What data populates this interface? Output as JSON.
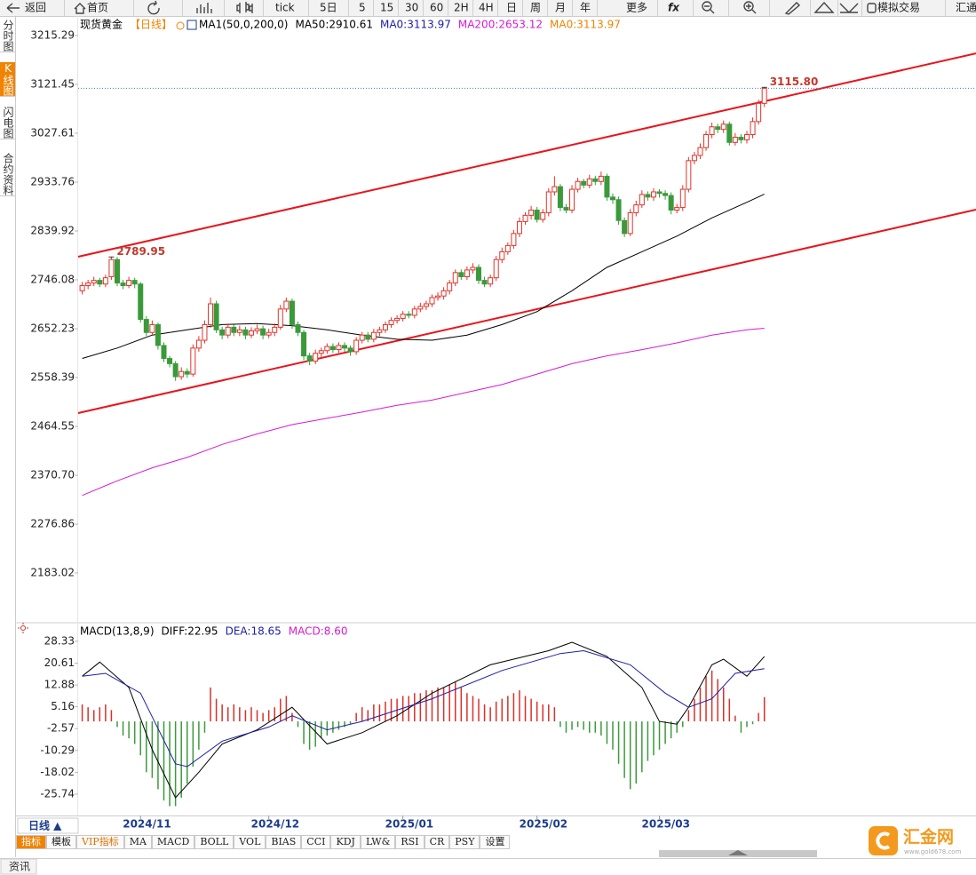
{
  "toolbar": {
    "items": [
      "返回",
      "首页",
      "tick",
      "5日",
      "5",
      "15",
      "30",
      "60",
      "2H",
      "4H",
      "日",
      "周",
      "月",
      "年",
      "更多",
      "fx",
      "模拟交易",
      "汇通"
    ]
  },
  "sidebar": {
    "items": [
      "分时图",
      "K线图",
      "闪电图",
      "合约资料"
    ],
    "active": 1
  },
  "chart_data": [
    {
      "type": "candlestick",
      "title": "现货黄金",
      "period": "【日线】",
      "indicator": "MA1(50,0,200,0)",
      "up_color": "#e0332a",
      "down_color": "#3a9a3a",
      "xlim": [
        -0.7,
        153.3
      ],
      "ylim": [
        2089.2,
        3252.8
      ],
      "yticks": [
        3215.29,
        3121.45,
        3027.61,
        2933.76,
        2839.92,
        2746.08,
        2652.23,
        2558.39,
        2464.55,
        {
          "value": 2370.7,
          "label": "2370.70"
        },
        2276.86,
        2183.02
      ],
      "xticks": [
        {
          "value": 10,
          "label": "2024/11"
        },
        {
          "value": 32,
          "label": "2024/12"
        },
        {
          "value": 55,
          "label": "2025/01"
        },
        {
          "value": 78,
          "label": "2025/02"
        },
        {
          "value": 99,
          "label": "2025/03"
        }
      ],
      "ohlc": [
        [
          2725,
          2742,
          2718,
          2735
        ],
        [
          2735,
          2746,
          2728,
          2740
        ],
        [
          2740,
          2752,
          2734,
          2745
        ],
        [
          2745,
          2750,
          2732,
          2738
        ],
        [
          2738,
          2756,
          2732,
          2750
        ],
        [
          2752,
          2789.95,
          2746,
          2785
        ],
        [
          2785,
          2790,
          2734,
          2740
        ],
        [
          2740,
          2746,
          2728,
          2735
        ],
        [
          2735,
          2752,
          2730,
          2745
        ],
        [
          2745,
          2750,
          2730,
          2738
        ],
        [
          2738,
          2742,
          2664,
          2670
        ],
        [
          2670,
          2676,
          2638,
          2645
        ],
        [
          2645,
          2668,
          2640,
          2660
        ],
        [
          2660,
          2664,
          2612,
          2620
        ],
        [
          2620,
          2626,
          2588,
          2595
        ],
        [
          2595,
          2600,
          2578,
          2585
        ],
        [
          2585,
          2590,
          2552,
          2560
        ],
        [
          2560,
          2578,
          2554,
          2570
        ],
        [
          2570,
          2576,
          2558,
          2565
        ],
        [
          2565,
          2622,
          2560,
          2615
        ],
        [
          2615,
          2638,
          2608,
          2630
        ],
        [
          2630,
          2668,
          2624,
          2660
        ],
        [
          2660,
          2712,
          2654,
          2700
        ],
        [
          2700,
          2706,
          2644,
          2650
        ],
        [
          2650,
          2656,
          2632,
          2640
        ],
        [
          2640,
          2662,
          2634,
          2655
        ],
        [
          2655,
          2660,
          2638,
          2645
        ],
        [
          2645,
          2658,
          2638,
          2650
        ],
        [
          2650,
          2656,
          2632,
          2640
        ],
        [
          2640,
          2655,
          2634,
          2648
        ],
        [
          2648,
          2660,
          2642,
          2652
        ],
        [
          2652,
          2658,
          2632,
          2640
        ],
        [
          2640,
          2652,
          2634,
          2645
        ],
        [
          2645,
          2662,
          2638,
          2655
        ],
        [
          2655,
          2698,
          2650,
          2690
        ],
        [
          2690,
          2712,
          2684,
          2705
        ],
        [
          2705,
          2710,
          2652,
          2660
        ],
        [
          2660,
          2666,
          2638,
          2645
        ],
        [
          2645,
          2650,
          2592,
          2600
        ],
        [
          2600,
          2606,
          2582,
          2590
        ],
        [
          2590,
          2612,
          2584,
          2605
        ],
        [
          2605,
          2616,
          2598,
          2610
        ],
        [
          2610,
          2624,
          2604,
          2618
        ],
        [
          2618,
          2624,
          2606,
          2612
        ],
        [
          2612,
          2626,
          2606,
          2620
        ],
        [
          2620,
          2626,
          2608,
          2615
        ],
        [
          2615,
          2620,
          2600,
          2608
        ],
        [
          2608,
          2636,
          2602,
          2630
        ],
        [
          2630,
          2646,
          2624,
          2640
        ],
        [
          2640,
          2646,
          2626,
          2632
        ],
        [
          2632,
          2652,
          2626,
          2645
        ],
        [
          2645,
          2656,
          2638,
          2650
        ],
        [
          2650,
          2666,
          2644,
          2660
        ],
        [
          2660,
          2674,
          2654,
          2668
        ],
        [
          2668,
          2678,
          2662,
          2672
        ],
        [
          2672,
          2686,
          2666,
          2680
        ],
        [
          2680,
          2686,
          2672,
          2678
        ],
        [
          2678,
          2696,
          2672,
          2690
        ],
        [
          2690,
          2702,
          2684,
          2695
        ],
        [
          2695,
          2706,
          2688,
          2700
        ],
        [
          2700,
          2718,
          2694,
          2712
        ],
        [
          2712,
          2722,
          2706,
          2715
        ],
        [
          2715,
          2732,
          2708,
          2725
        ],
        [
          2725,
          2746,
          2718,
          2740
        ],
        [
          2740,
          2766,
          2734,
          2760
        ],
        [
          2760,
          2766,
          2746,
          2752
        ],
        [
          2752,
          2772,
          2746,
          2765
        ],
        [
          2765,
          2778,
          2758,
          2770
        ],
        [
          2770,
          2776,
          2738,
          2745
        ],
        [
          2745,
          2752,
          2732,
          2738
        ],
        [
          2738,
          2756,
          2732,
          2750
        ],
        [
          2750,
          2792,
          2744,
          2785
        ],
        [
          2785,
          2808,
          2778,
          2800
        ],
        [
          2800,
          2818,
          2794,
          2812
        ],
        [
          2812,
          2842,
          2806,
          2835
        ],
        [
          2835,
          2866,
          2828,
          2858
        ],
        [
          2858,
          2876,
          2852,
          2870
        ],
        [
          2870,
          2888,
          2862,
          2880
        ],
        [
          2880,
          2886,
          2856,
          2862
        ],
        [
          2862,
          2882,
          2856,
          2875
        ],
        [
          2875,
          2922,
          2868,
          2915
        ],
        [
          2915,
          2945,
          2908,
          2925
        ],
        [
          2925,
          2930,
          2878,
          2885
        ],
        [
          2885,
          2892,
          2874,
          2880
        ],
        [
          2880,
          2928,
          2874,
          2920
        ],
        [
          2920,
          2942,
          2914,
          2935
        ],
        [
          2935,
          2940,
          2922,
          2928
        ],
        [
          2928,
          2948,
          2922,
          2940
        ],
        [
          2940,
          2946,
          2928,
          2935
        ],
        [
          2935,
          2954,
          2928,
          2945
        ],
        [
          2945,
          2950,
          2898,
          2905
        ],
        [
          2905,
          2912,
          2892,
          2900
        ],
        [
          2900,
          2906,
          2852,
          2860
        ],
        [
          2860,
          2866,
          2828,
          2835
        ],
        [
          2835,
          2882,
          2830,
          2875
        ],
        [
          2875,
          2898,
          2868,
          2890
        ],
        [
          2890,
          2918,
          2884,
          2910
        ],
        [
          2910,
          2916,
          2898,
          2905
        ],
        [
          2905,
          2922,
          2898,
          2915
        ],
        [
          2915,
          2920,
          2904,
          2912
        ],
        [
          2912,
          2918,
          2900,
          2908
        ],
        [
          2908,
          2914,
          2872,
          2880
        ],
        [
          2880,
          2892,
          2874,
          2885
        ],
        [
          2885,
          2928,
          2878,
          2920
        ],
        [
          2920,
          2982,
          2914,
          2975
        ],
        [
          2975,
          2992,
          2968,
          2985
        ],
        [
          2985,
          3008,
          2978,
          3000
        ],
        [
          3000,
          3032,
          2994,
          3025
        ],
        [
          3025,
          3048,
          3018,
          3040
        ],
        [
          3040,
          3046,
          3028,
          3035
        ],
        [
          3035,
          3052,
          3028,
          3045
        ],
        [
          3045,
          3050,
          3004,
          3010
        ],
        [
          3010,
          3028,
          3004,
          3020
        ],
        [
          3020,
          3026,
          3008,
          3015
        ],
        [
          3015,
          3032,
          3008,
          3025
        ],
        [
          3025,
          3058,
          3018,
          3050
        ],
        [
          3050,
          3092,
          3044,
          3085
        ],
        [
          3085,
          3115.8,
          3078,
          3113.97
        ]
      ],
      "series": [
        {
          "name": "MA50:2910.61",
          "color": "#000000",
          "x": [
            0,
            6,
            12,
            18,
            24,
            30,
            36,
            42,
            48,
            54,
            60,
            66,
            72,
            78,
            84,
            90,
            96,
            102,
            108,
            114,
            117
          ],
          "values": [
            2595,
            2615,
            2640,
            2650,
            2660,
            2662,
            2658,
            2650,
            2640,
            2632,
            2630,
            2640,
            2660,
            2685,
            2725,
            2770,
            2800,
            2830,
            2865,
            2895,
            2910.61
          ]
        },
        {
          "name": "MA200:2653.12",
          "color": "#d61ad6",
          "x": [
            0,
            6,
            12,
            18,
            24,
            30,
            36,
            42,
            48,
            54,
            60,
            66,
            72,
            78,
            84,
            90,
            96,
            102,
            108,
            114,
            117
          ],
          "values": [
            2332,
            2360,
            2385,
            2405,
            2430,
            2450,
            2468,
            2480,
            2492,
            2505,
            2515,
            2530,
            2545,
            2565,
            2585,
            2600,
            2612,
            2625,
            2640,
            2650,
            2653.12
          ]
        }
      ],
      "legend_extra": [
        {
          "name": "MA0:3113.97",
          "color": "#1c1ca8"
        },
        {
          "name": "MA0:3113.97",
          "color": "#f08300"
        }
      ],
      "trendlines": [
        {
          "color": "#e8141c",
          "x": [
            -0.7,
            153.3
          ],
          "values": [
            2790.4,
            3181
          ]
        },
        {
          "color": "#e8141c",
          "x": [
            -0.7,
            153.3
          ],
          "values": [
            2490.2,
            2880.9
          ]
        }
      ],
      "last_price": 3113.97,
      "high_labels": [
        {
          "index": 5,
          "value": 2789.95,
          "label": "2789.95"
        },
        {
          "index": 117,
          "value": 3115.8,
          "label": "3115.80"
        }
      ]
    },
    {
      "type": "macd",
      "title": "MACD(13,8,9)",
      "xlim": [
        -0.7,
        153.3
      ],
      "ylim": [
        -33.3,
        34.6
      ],
      "yticks": [
        28.33,
        20.61,
        12.88,
        5.16,
        -2.57,
        -10.29,
        -18.02,
        -25.74
      ],
      "series": [
        {
          "name": "DIFF:22.95",
          "color": "#000000",
          "x": [
            0,
            3,
            8,
            12,
            16,
            20,
            24,
            30,
            36,
            42,
            48,
            54,
            60,
            70,
            80,
            84,
            90,
            96,
            99,
            102,
            104,
            108,
            110,
            114,
            117
          ],
          "values": [
            16,
            21,
            12,
            -10,
            -27,
            -18,
            -8,
            -3,
            5,
            -8,
            -4,
            2,
            10,
            20,
            25,
            28,
            23,
            12,
            0,
            -1,
            5,
            20,
            22,
            16,
            22.95
          ]
        },
        {
          "name": "DEA:18.65",
          "color": "#1c1ca8",
          "x": [
            0,
            4,
            10,
            16,
            18,
            24,
            32,
            36,
            42,
            48,
            60,
            72,
            82,
            86,
            94,
            100,
            104,
            108,
            112,
            117
          ],
          "values": [
            16,
            17,
            10,
            -15,
            -16,
            -7,
            -2,
            2,
            -3,
            0,
            8,
            18,
            24,
            25,
            20,
            10,
            5,
            8,
            17,
            18.65
          ]
        },
        {
          "name": "MACD:8.60",
          "color": "#d61ad6",
          "up_color": "#d9312a",
          "down_color": "#3c9a3c",
          "values": [
            6,
            5,
            4,
            5,
            6,
            4,
            -2,
            -5,
            -6,
            -8,
            -12,
            -18,
            -20,
            -24,
            -28,
            -30,
            -30,
            -27,
            -22,
            -16,
            -10,
            -4,
            12,
            8,
            6,
            5,
            6,
            5,
            4,
            5,
            4,
            3,
            4,
            5,
            8,
            9,
            3,
            -2,
            -8,
            -10,
            -9,
            -6,
            -5,
            -4,
            -3,
            -2,
            -1,
            3,
            5,
            4,
            6,
            6,
            7,
            8,
            8,
            9,
            9,
            10,
            10,
            11,
            11,
            12,
            12,
            13,
            14,
            12,
            10,
            9,
            8,
            6,
            5,
            7,
            8,
            9,
            10,
            11,
            9,
            8,
            7,
            6,
            6,
            5,
            -2,
            -4,
            -3,
            -2,
            -3,
            -4,
            -4,
            -5,
            -8,
            -10,
            -15,
            -20,
            -24,
            -22,
            -18,
            -14,
            -12,
            -10,
            -8,
            -6,
            -4,
            -2,
            4,
            8,
            12,
            16,
            18,
            15,
            12,
            8,
            2,
            -4,
            -2,
            -1,
            3,
            8.6
          ]
        }
      ]
    }
  ],
  "period_button": "日线 ▲",
  "indicator_tabs": {
    "items": [
      "指标",
      "模板",
      "VIP指标",
      "MA",
      "MACD",
      "BOLL",
      "VOL",
      "BIAS",
      "CCI",
      "KDJ",
      "LW&",
      "RSI",
      "CR",
      "PSY",
      "设置"
    ],
    "active": 0,
    "vip": 2
  },
  "footer": {
    "tab": "资讯",
    "logo": "汇金网",
    "logo_url": "www.gold678.com"
  }
}
